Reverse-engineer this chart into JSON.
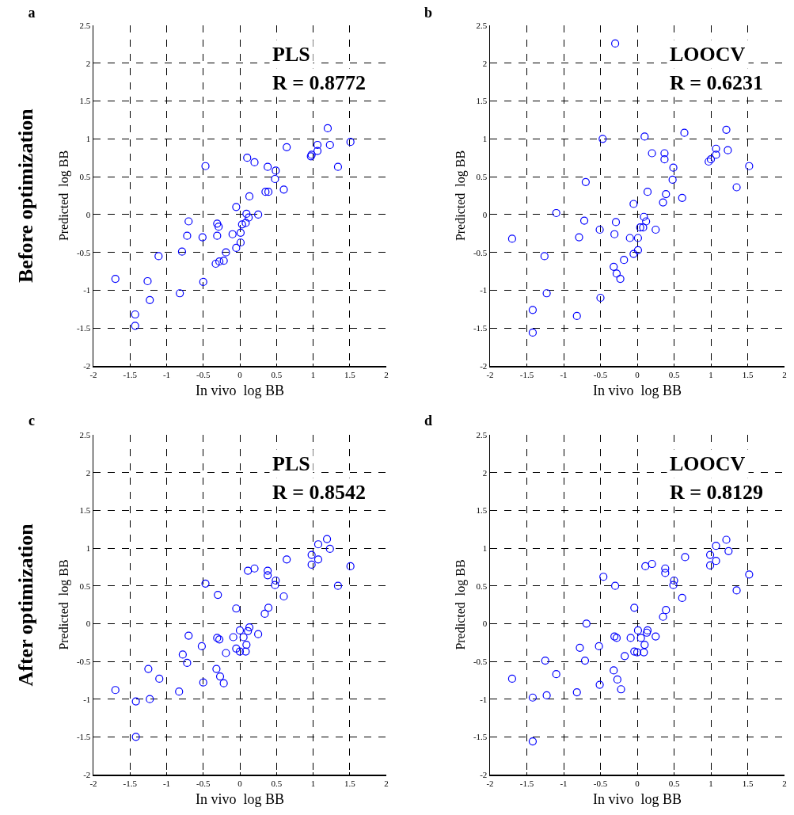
{
  "chart_data": [
    {
      "type": "scatter",
      "title": "a",
      "subtitle": "Before optimization",
      "xlabel": "In vivo  log BB",
      "ylabel": "Predicted  log BB",
      "color": "#0000ff",
      "marker": "circle",
      "grid": true,
      "xlim": [
        -2,
        2
      ],
      "ylim": [
        -2,
        2.5
      ],
      "xticks": [
        -2,
        -1.5,
        -1,
        -0.5,
        0,
        0.5,
        1,
        1.5,
        2
      ],
      "yticks": [
        -2,
        -1.5,
        -1,
        -0.5,
        0,
        0.5,
        1,
        1.5,
        2,
        2.5
      ],
      "annotations": [
        "PLS",
        "R = 0.8772"
      ],
      "x": [
        -1.7,
        -1.26,
        -1.23,
        -1.43,
        -1.43,
        -1.11,
        -0.82,
        -0.79,
        -0.72,
        -0.7,
        -0.51,
        -0.5,
        -0.47,
        -0.33,
        -0.31,
        -0.29,
        -0.31,
        -0.28,
        -0.22,
        -0.19,
        -0.1,
        -0.05,
        -0.05,
        0.01,
        0.01,
        0.03,
        0.08,
        0.09,
        0.12,
        0.1,
        0.13,
        0.2,
        0.25,
        0.38,
        0.35,
        0.39,
        0.48,
        0.49,
        0.6,
        0.64,
        0.97,
        0.98,
        1.06,
        1.06,
        1.2,
        1.23,
        1.34,
        1.51
      ],
      "values": [
        -0.85,
        -0.88,
        -1.13,
        -1.32,
        -1.47,
        -0.55,
        -1.04,
        -0.49,
        -0.28,
        -0.09,
        -0.3,
        -0.89,
        0.64,
        -0.65,
        -0.12,
        -0.16,
        -0.28,
        -0.62,
        -0.61,
        -0.5,
        -0.26,
        0.1,
        -0.44,
        -0.37,
        -0.24,
        -0.13,
        -0.11,
        0.01,
        -0.04,
        0.75,
        0.24,
        0.69,
        0.0,
        0.63,
        0.3,
        0.3,
        0.47,
        0.58,
        0.33,
        0.89,
        0.77,
        0.79,
        0.92,
        0.84,
        1.14,
        0.92,
        0.63,
        0.96
      ]
    },
    {
      "type": "scatter",
      "title": "b",
      "xlabel": "In vivo  log BB",
      "ylabel": "Predicted  log BB",
      "color": "#0000ff",
      "marker": "circle",
      "grid": true,
      "xlim": [
        -2,
        2
      ],
      "ylim": [
        -2,
        2.5
      ],
      "xticks": [
        -2,
        -1.5,
        -1,
        -0.5,
        0,
        0.5,
        1,
        1.5,
        2
      ],
      "yticks": [
        -2,
        -1.5,
        -1,
        -0.5,
        0,
        0.5,
        1,
        1.5,
        2,
        2.5
      ],
      "annotations": [
        "LOOCV",
        "R = 0.6231"
      ],
      "x": [
        -1.7,
        -1.26,
        -1.23,
        -1.42,
        -1.42,
        -1.1,
        -0.82,
        -0.79,
        -0.72,
        -0.7,
        -0.51,
        -0.5,
        -0.47,
        -0.32,
        -0.28,
        -0.23,
        -0.31,
        -0.29,
        -0.3,
        -0.18,
        -0.1,
        -0.05,
        -0.05,
        0.01,
        0.01,
        0.04,
        0.08,
        0.09,
        0.12,
        0.1,
        0.14,
        0.2,
        0.25,
        0.35,
        0.39,
        0.37,
        0.37,
        0.49,
        0.48,
        0.61,
        0.64,
        0.97,
        1.0,
        1.07,
        1.07,
        1.21,
        1.23,
        1.35,
        1.52
      ],
      "values": [
        -0.32,
        -0.55,
        -1.04,
        -1.26,
        -1.56,
        0.02,
        -1.34,
        -0.3,
        -0.08,
        0.43,
        -0.2,
        -1.1,
        1.0,
        -0.69,
        -0.78,
        -0.85,
        -0.26,
        -0.1,
        2.26,
        -0.6,
        -0.31,
        -0.52,
        0.14,
        -0.47,
        -0.31,
        -0.17,
        -0.17,
        -0.03,
        -0.09,
        1.03,
        0.3,
        0.81,
        -0.2,
        0.16,
        0.27,
        0.81,
        0.73,
        0.62,
        0.46,
        0.22,
        1.08,
        0.7,
        0.73,
        0.87,
        0.79,
        1.12,
        0.85,
        0.36,
        0.64
      ]
    },
    {
      "type": "scatter",
      "title": "c",
      "subtitle": "After optimization",
      "xlabel": "In vivo  log BB",
      "ylabel": "Predicted  log BB",
      "color": "#0000ff",
      "marker": "circle",
      "grid": true,
      "xlim": [
        -2,
        2
      ],
      "ylim": [
        -2,
        2.5
      ],
      "xticks": [
        -2,
        -1.5,
        -1,
        -0.5,
        0,
        0.5,
        1,
        1.5,
        2
      ],
      "yticks": [
        -2,
        -1.5,
        -1,
        -0.5,
        0,
        0.5,
        1,
        1.5,
        2,
        2.5
      ],
      "annotations": [
        "PLS",
        "R = 0.8542"
      ],
      "x": [
        -1.7,
        -1.25,
        -1.23,
        -1.42,
        -1.42,
        -1.1,
        -0.83,
        -0.78,
        -0.72,
        -0.7,
        -0.52,
        -0.5,
        -0.47,
        -0.32,
        -0.27,
        -0.22,
        -0.31,
        -0.28,
        -0.3,
        -0.19,
        -0.09,
        -0.05,
        -0.05,
        0.0,
        0.0,
        0.05,
        0.09,
        0.08,
        0.13,
        0.11,
        0.11,
        0.2,
        0.25,
        0.34,
        0.39,
        0.38,
        0.38,
        0.49,
        0.48,
        0.6,
        0.64,
        0.98,
        0.98,
        1.07,
        1.07,
        1.19,
        1.23,
        1.34,
        1.51
      ],
      "values": [
        -0.88,
        -0.6,
        -1.0,
        -1.03,
        -1.5,
        -0.73,
        -0.9,
        -0.41,
        -0.52,
        -0.16,
        -0.3,
        -0.78,
        0.53,
        -0.6,
        -0.7,
        -0.79,
        -0.19,
        -0.21,
        0.38,
        -0.39,
        -0.18,
        0.2,
        -0.33,
        -0.37,
        -0.09,
        -0.18,
        -0.28,
        -0.37,
        -0.05,
        -0.1,
        0.7,
        0.73,
        -0.14,
        0.13,
        0.21,
        0.7,
        0.64,
        0.57,
        0.51,
        0.36,
        0.85,
        0.91,
        0.78,
        1.05,
        0.85,
        1.12,
        0.99,
        0.5,
        0.76
      ]
    },
    {
      "type": "scatter",
      "title": "d",
      "xlabel": "In vivo  log BB",
      "ylabel": "Predicted  log BB",
      "color": "#0000ff",
      "marker": "circle",
      "grid": true,
      "xlim": [
        -2,
        2
      ],
      "ylim": [
        -2,
        2.5
      ],
      "xticks": [
        -2,
        -1.5,
        -1,
        -0.5,
        0,
        0.5,
        1,
        1.5,
        2
      ],
      "yticks": [
        -2,
        -1.5,
        -1,
        -0.5,
        0,
        0.5,
        1,
        1.5,
        2,
        2.5
      ],
      "annotations": [
        "LOOCV",
        "R = 0.8129"
      ],
      "x": [
        -1.7,
        -1.25,
        -1.23,
        -1.42,
        -1.42,
        -1.1,
        -0.82,
        -0.78,
        -0.71,
        -0.69,
        -0.52,
        -0.51,
        -0.46,
        -0.32,
        -0.27,
        -0.22,
        -0.31,
        -0.28,
        -0.3,
        -0.17,
        -0.09,
        -0.04,
        -0.04,
        0.0,
        0.01,
        0.05,
        0.1,
        0.09,
        0.14,
        0.13,
        0.11,
        0.2,
        0.25,
        0.35,
        0.39,
        0.38,
        0.38,
        0.5,
        0.49,
        0.61,
        0.65,
        0.99,
        0.99,
        1.07,
        1.07,
        1.21,
        1.24,
        1.35,
        1.52
      ],
      "values": [
        -0.73,
        -0.49,
        -0.95,
        -0.98,
        -1.56,
        -0.67,
        -0.91,
        -0.32,
        -0.49,
        0.0,
        -0.3,
        -0.81,
        0.62,
        -0.62,
        -0.74,
        -0.87,
        -0.17,
        -0.19,
        0.5,
        -0.43,
        -0.19,
        0.21,
        -0.37,
        -0.38,
        -0.09,
        -0.19,
        -0.28,
        -0.38,
        -0.09,
        -0.12,
        0.76,
        0.79,
        -0.17,
        0.09,
        0.18,
        0.73,
        0.67,
        0.57,
        0.51,
        0.34,
        0.88,
        0.91,
        0.77,
        1.03,
        0.83,
        1.11,
        0.96,
        0.44,
        0.65
      ]
    }
  ]
}
